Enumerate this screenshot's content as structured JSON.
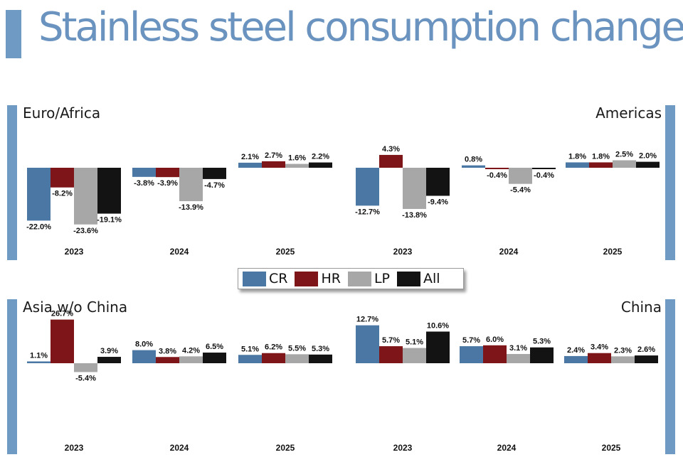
{
  "page_title": "Stainless steel consumption changes",
  "legend": [
    {
      "label": "CR",
      "color": "#4a77a3"
    },
    {
      "label": "HR",
      "color": "#7d1519"
    },
    {
      "label": "LP",
      "color": "#a7a7a7"
    },
    {
      "label": "All",
      "color": "#131313"
    }
  ],
  "chart_data": [
    {
      "type": "bar",
      "title": "Euro/Africa",
      "categories": [
        "2023",
        "2024",
        "2025"
      ],
      "series": [
        {
          "name": "CR",
          "values": [
            -22.0,
            -3.8,
            2.1
          ],
          "labels": [
            "-22.0%",
            "-3.8%",
            "2.1%"
          ]
        },
        {
          "name": "HR",
          "values": [
            -8.2,
            -3.9,
            2.7
          ],
          "labels": [
            "-8.2%",
            "-3.9%",
            "2.7%"
          ]
        },
        {
          "name": "LP",
          "values": [
            -23.6,
            -13.9,
            1.6
          ],
          "labels": [
            "-23.6%",
            "-13.9%",
            "1.6%"
          ]
        },
        {
          "name": "All",
          "values": [
            -19.1,
            -4.7,
            2.2
          ],
          "labels": [
            "-19.1%",
            "-4.7%",
            "2.2%"
          ]
        }
      ]
    },
    {
      "type": "bar",
      "title": "Americas",
      "categories": [
        "2023",
        "2024",
        "2025"
      ],
      "series": [
        {
          "name": "CR",
          "values": [
            -12.7,
            0.8,
            1.8
          ],
          "labels": [
            "-12.7%",
            "0.8%",
            "1.8%"
          ]
        },
        {
          "name": "HR",
          "values": [
            4.3,
            -0.4,
            1.8
          ],
          "labels": [
            "4.3%",
            "-0.4%",
            "1.8%"
          ]
        },
        {
          "name": "LP",
          "values": [
            -13.8,
            -5.4,
            2.5
          ],
          "labels": [
            "-13.8%",
            "-5.4%",
            "2.5%"
          ]
        },
        {
          "name": "All",
          "values": [
            -9.4,
            -0.4,
            2.0
          ],
          "labels": [
            "-9.4%",
            "-0.4%",
            "2.0%"
          ]
        }
      ]
    },
    {
      "type": "bar",
      "title": "Asia w/o China",
      "categories": [
        "2023",
        "2024",
        "2025"
      ],
      "series": [
        {
          "name": "CR",
          "values": [
            1.1,
            8.0,
            5.1
          ],
          "labels": [
            "1.1%",
            "8.0%",
            "5.1%"
          ]
        },
        {
          "name": "HR",
          "values": [
            26.7,
            3.8,
            6.2
          ],
          "labels": [
            "26.7%",
            "3.8%",
            "6.2%"
          ]
        },
        {
          "name": "LP",
          "values": [
            -5.4,
            4.2,
            5.5
          ],
          "labels": [
            "-5.4%",
            "4.2%",
            "5.5%"
          ]
        },
        {
          "name": "All",
          "values": [
            3.9,
            6.5,
            5.3
          ],
          "labels": [
            "3.9%",
            "6.5%",
            "5.3%"
          ]
        }
      ]
    },
    {
      "type": "bar",
      "title": "China",
      "categories": [
        "2023",
        "2024",
        "2025"
      ],
      "series": [
        {
          "name": "CR",
          "values": [
            12.7,
            5.7,
            2.4
          ],
          "labels": [
            "12.7%",
            "5.7%",
            "2.4%"
          ]
        },
        {
          "name": "HR",
          "values": [
            5.7,
            6.0,
            3.4
          ],
          "labels": [
            "5.7%",
            "6.0%",
            "3.4%"
          ]
        },
        {
          "name": "LP",
          "values": [
            5.1,
            3.1,
            2.3
          ],
          "labels": [
            "5.1%",
            "3.1%",
            "2.3%"
          ]
        },
        {
          "name": "All",
          "values": [
            10.6,
            5.3,
            2.6
          ],
          "labels": [
            "10.6%",
            "5.3%",
            "2.6%"
          ]
        }
      ]
    }
  ]
}
